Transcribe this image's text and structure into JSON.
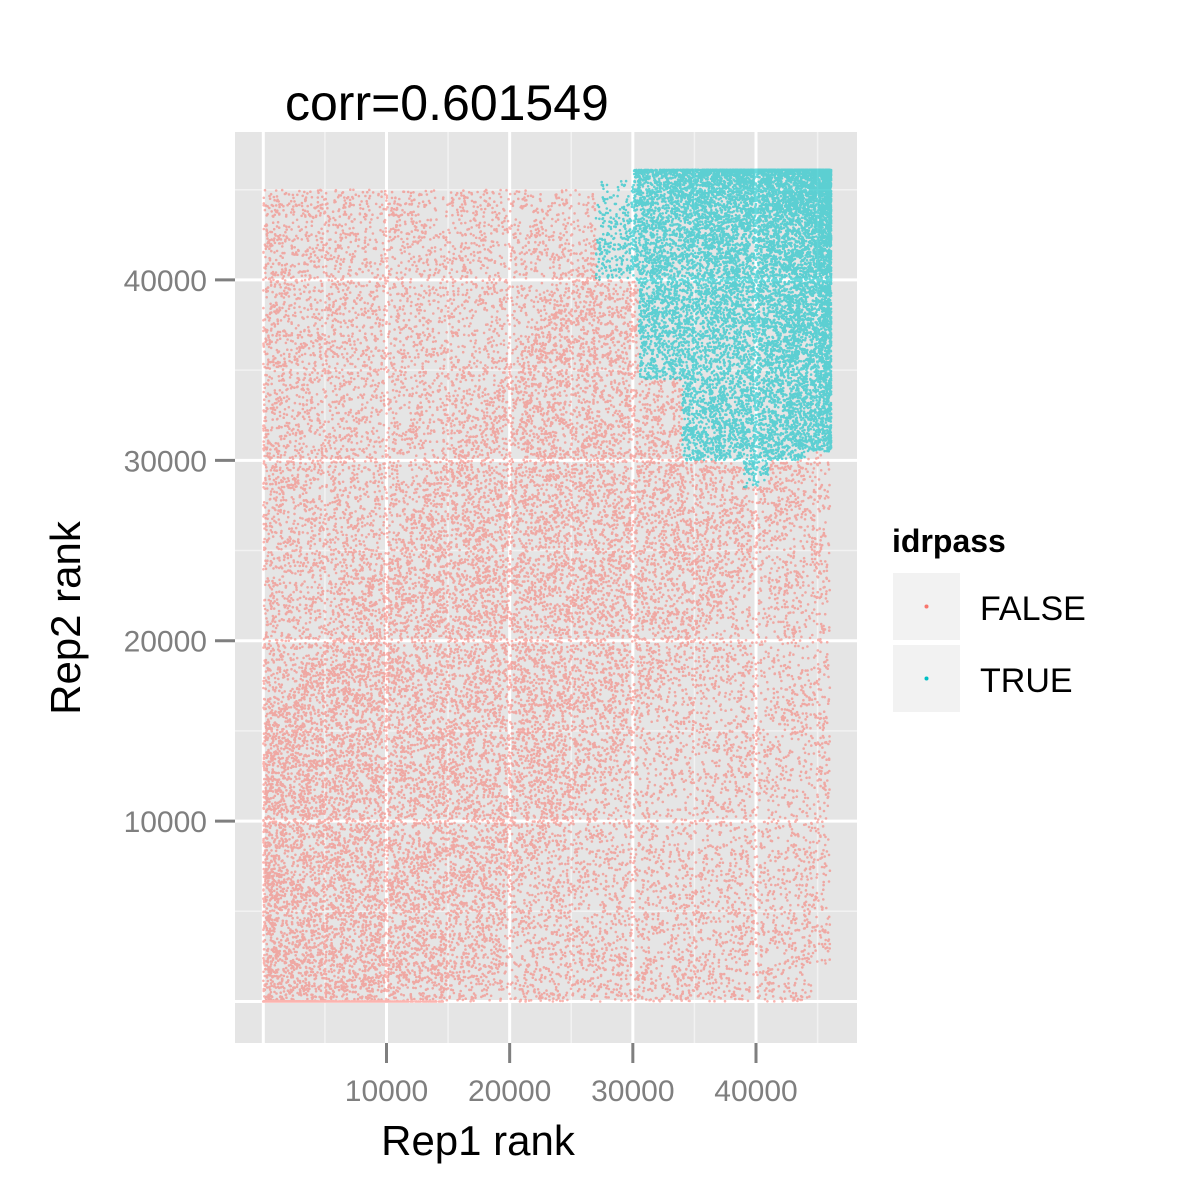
{
  "chart_data": {
    "type": "scatter",
    "title": "corr=0.601549",
    "xlabel": "Rep1 rank",
    "ylabel": "Rep2 rank",
    "xlim": [
      -2300,
      48200
    ],
    "ylim": [
      -2300,
      48200
    ],
    "x_ticks": [
      10000,
      20000,
      30000,
      40000
    ],
    "x_tick_labels": [
      "10000",
      "20000",
      "30000",
      "40000"
    ],
    "y_ticks": [
      10000,
      20000,
      30000,
      40000
    ],
    "y_tick_labels": [
      "10000",
      "20000",
      "30000",
      "40000"
    ],
    "grid": true,
    "legend": {
      "title": "idrpass",
      "position": "right",
      "entries": [
        {
          "label": "FALSE",
          "color": "#F8766D"
        },
        {
          "label": "TRUE",
          "color": "#00BFC4"
        }
      ]
    },
    "series": [
      {
        "name": "FALSE",
        "color": "#F8766D",
        "approx_points": 32000,
        "x_range": [
          0,
          46000
        ],
        "y_range": [
          0,
          45500
        ],
        "description_region": "fills the square except the upper-right corner; dense along x near 0 and y near 0"
      },
      {
        "name": "TRUE",
        "color": "#00BFC4",
        "approx_points": 14000,
        "x_range": [
          27000,
          46100
        ],
        "y_range": [
          28000,
          46100
        ],
        "description_region": "upper-right corner where both ranks are high"
      }
    ]
  },
  "colors": {
    "panel_bg": "#E5E5E5",
    "grid_major": "#FFFFFF",
    "grid_minor": "#F2F2F2",
    "legend_key_bg": "#F2F2F2"
  }
}
